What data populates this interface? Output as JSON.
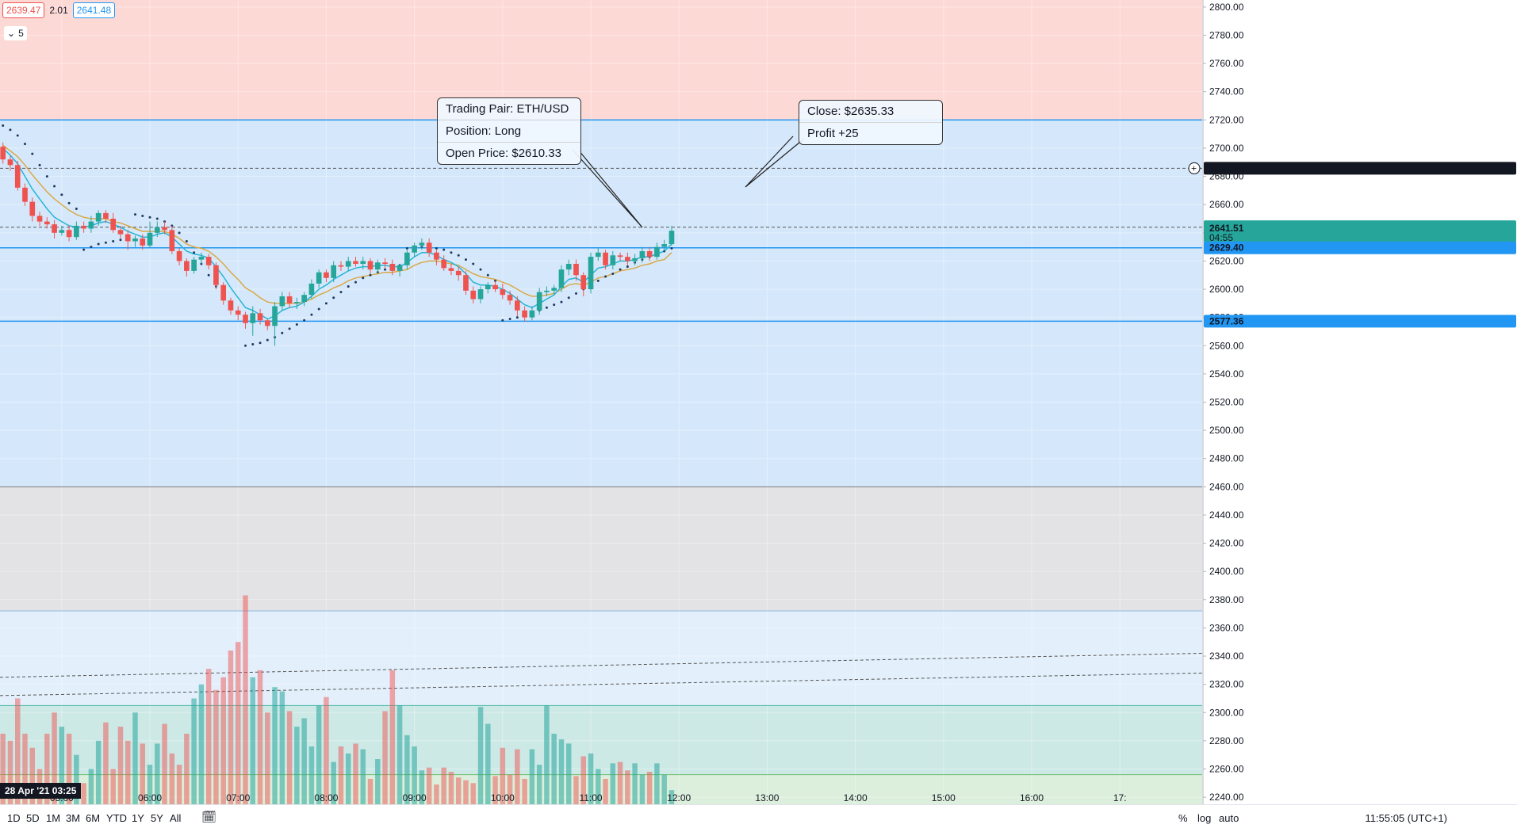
{
  "header": {
    "bid": "2639.47",
    "spread": "2.01",
    "ask": "2641.48",
    "interval": "5"
  },
  "popups": {
    "open": {
      "pair": "Trading Pair: ETH/USD",
      "position": "Position: Long",
      "open_price": "Open Price: $2610.33"
    },
    "close": {
      "close_price": "Close: $2635.33",
      "profit": "Profit +25"
    }
  },
  "price_tags": {
    "crosshair": "2685.72",
    "last_price": "2641.51",
    "countdown": "04:55",
    "upper_line": "2629.40",
    "lower_line": "2577.36"
  },
  "colors": {
    "up": "#26a69a",
    "down": "#ef5350",
    "ema_fast": "#26b5d6",
    "ema_slow": "#d9a948",
    "zone_red": "#fdd9d6",
    "zone_blue": "#d5e8fb",
    "zone_gray": "#e3e3e5",
    "zone_lightblue": "#e3f0fc",
    "zone_teal": "#cde9e6",
    "zone_green": "#dcefdc",
    "line_blue": "#2196f3"
  },
  "date_badge": "28 Apr '21   03:25",
  "toolbar": {
    "timeframes": [
      "1D",
      "5D",
      "1M",
      "3M",
      "6M",
      "YTD",
      "1Y",
      "5Y",
      "All"
    ],
    "clock": "11:55:05 (UTC+1)",
    "percent": "%",
    "log": "log",
    "auto": "auto"
  },
  "chart_data": {
    "type": "candlestick",
    "symbol": "ETH/USD",
    "interval_minutes": 5,
    "ylim": [
      2235,
      2805
    ],
    "y_ticks": [
      2800,
      2780,
      2760,
      2740,
      2720,
      2700,
      2680,
      2660,
      2640,
      2620,
      2600,
      2580,
      2560,
      2540,
      2520,
      2500,
      2480,
      2460,
      2440,
      2420,
      2400,
      2380,
      2360,
      2340,
      2320,
      2300,
      2280,
      2260,
      2240
    ],
    "x_ticks": [
      "05:00",
      "06:00",
      "07:00",
      "08:00",
      "09:00",
      "10:00",
      "11:00",
      "12:00",
      "13:00",
      "14:00",
      "15:00",
      "16:00",
      "17:"
    ],
    "x_tick_minutes": [
      300,
      360,
      420,
      480,
      540,
      600,
      660,
      720,
      780,
      840,
      900,
      960,
      1020
    ],
    "x_range_minutes": [
      258,
      1076
    ],
    "zones": [
      {
        "from": 2720,
        "to": 2805,
        "color": "zone_red"
      },
      {
        "from": 2460,
        "to": 2720,
        "color": "zone_blue"
      },
      {
        "from": 2372,
        "to": 2460,
        "color": "zone_gray"
      },
      {
        "from": 2305,
        "to": 2372,
        "color": "zone_lightblue"
      },
      {
        "from": 2256,
        "to": 2305,
        "color": "zone_teal"
      },
      {
        "from": 2235,
        "to": 2256,
        "color": "zone_green"
      }
    ],
    "hlines": [
      2720,
      2629.4,
      2577.36,
      2460
    ],
    "dashed_lines": [
      {
        "y": 2685.72,
        "x0": 258,
        "x1": 1076
      },
      {
        "y": 2644,
        "x0": 258,
        "x1": 1076
      },
      {
        "start": [
          258,
          2312
        ],
        "end": [
          1076,
          2328
        ]
      },
      {
        "start": [
          258,
          2325
        ],
        "end": [
          1076,
          2342
        ]
      }
    ],
    "times_min": [
      260,
      265,
      270,
      275,
      280,
      285,
      290,
      295,
      300,
      305,
      310,
      315,
      320,
      325,
      330,
      335,
      340,
      345,
      350,
      355,
      360,
      365,
      370,
      375,
      380,
      385,
      390,
      395,
      400,
      405,
      410,
      415,
      420,
      425,
      430,
      435,
      440,
      445,
      450,
      455,
      460,
      465,
      470,
      475,
      480,
      485,
      490,
      495,
      500,
      505,
      510,
      515,
      520,
      525,
      530,
      535,
      540,
      545,
      550,
      555,
      560,
      565,
      570,
      575,
      580,
      585,
      590,
      595,
      600,
      605,
      610,
      615,
      620,
      625,
      630,
      635,
      640,
      645,
      650,
      655,
      660,
      665,
      670,
      675,
      680,
      685,
      690,
      695,
      700,
      705,
      710,
      715
    ],
    "open": [
      2701,
      2692,
      2688,
      2672,
      2662,
      2652,
      2648,
      2646,
      2640,
      2642,
      2637,
      2645,
      2643,
      2648,
      2654,
      2650,
      2642,
      2639,
      2634,
      2636,
      2631,
      2640,
      2644,
      2642,
      2627,
      2620,
      2613,
      2621,
      2623,
      2617,
      2603,
      2592,
      2585,
      2582,
      2576,
      2583,
      2578,
      2574,
      2588,
      2595,
      2590,
      2591,
      2596,
      2604,
      2612,
      2608,
      2617,
      2616,
      2620,
      2618,
      2620,
      2614,
      2619,
      2618,
      2613,
      2617,
      2626,
      2631,
      2633,
      2626,
      2621,
      2615,
      2613,
      2610,
      2599,
      2593,
      2600,
      2603,
      2600,
      2596,
      2592,
      2585,
      2580,
      2585,
      2598,
      2599,
      2601,
      2614,
      2618,
      2610,
      2600,
      2623,
      2626,
      2617,
      2624,
      2623,
      2620,
      2622,
      2627,
      2623,
      2630,
      2632
    ],
    "close": [
      2692,
      2688,
      2672,
      2662,
      2652,
      2648,
      2646,
      2640,
      2642,
      2637,
      2645,
      2643,
      2648,
      2654,
      2650,
      2642,
      2639,
      2634,
      2636,
      2631,
      2640,
      2644,
      2642,
      2627,
      2620,
      2613,
      2621,
      2623,
      2617,
      2603,
      2592,
      2585,
      2582,
      2576,
      2583,
      2578,
      2574,
      2588,
      2595,
      2590,
      2591,
      2596,
      2604,
      2612,
      2608,
      2617,
      2616,
      2620,
      2618,
      2620,
      2614,
      2619,
      2618,
      2613,
      2617,
      2626,
      2631,
      2633,
      2626,
      2621,
      2615,
      2613,
      2610,
      2599,
      2593,
      2600,
      2603,
      2600,
      2596,
      2592,
      2585,
      2580,
      2585,
      2598,
      2599,
      2601,
      2614,
      2618,
      2610,
      2600,
      2623,
      2626,
      2617,
      2624,
      2623,
      2620,
      2622,
      2627,
      2623,
      2630,
      2632,
      2641.5
    ],
    "high": [
      2704,
      2695,
      2691,
      2675,
      2665,
      2655,
      2651,
      2649,
      2645,
      2645,
      2648,
      2648,
      2652,
      2656,
      2656,
      2654,
      2645,
      2642,
      2638,
      2639,
      2648,
      2648,
      2648,
      2645,
      2629,
      2622,
      2623,
      2626,
      2625,
      2619,
      2605,
      2594,
      2588,
      2584,
      2588,
      2586,
      2579,
      2591,
      2598,
      2598,
      2594,
      2598,
      2607,
      2614,
      2614,
      2620,
      2620,
      2623,
      2623,
      2623,
      2622,
      2621,
      2622,
      2621,
      2618,
      2628,
      2633,
      2636,
      2636,
      2628,
      2624,
      2618,
      2616,
      2613,
      2602,
      2602,
      2605,
      2606,
      2604,
      2599,
      2595,
      2588,
      2588,
      2601,
      2602,
      2603,
      2617,
      2621,
      2621,
      2612,
      2626,
      2629,
      2628,
      2627,
      2626,
      2626,
      2625,
      2630,
      2630,
      2633,
      2635,
      2645
    ],
    "low": [
      2689,
      2684,
      2670,
      2659,
      2648,
      2645,
      2643,
      2636,
      2638,
      2634,
      2635,
      2640,
      2640,
      2645,
      2647,
      2640,
      2636,
      2628,
      2630,
      2628,
      2629,
      2637,
      2639,
      2625,
      2617,
      2609,
      2611,
      2618,
      2614,
      2600,
      2589,
      2582,
      2578,
      2572,
      2567,
      2575,
      2571,
      2560,
      2585,
      2587,
      2586,
      2588,
      2593,
      2601,
      2605,
      2605,
      2613,
      2613,
      2616,
      2614,
      2611,
      2611,
      2615,
      2610,
      2609,
      2614,
      2623,
      2628,
      2623,
      2617,
      2613,
      2610,
      2606,
      2596,
      2590,
      2590,
      2597,
      2598,
      2593,
      2589,
      2581,
      2577,
      2578,
      2582,
      2595,
      2596,
      2598,
      2610,
      2606,
      2595,
      2597,
      2620,
      2614,
      2614,
      2620,
      2617,
      2617,
      2619,
      2620,
      2621,
      2627,
      2631
    ],
    "ema_fast": [
      2700,
      2695,
      2689,
      2680,
      2671,
      2664,
      2657,
      2651,
      2648,
      2645,
      2644,
      2644,
      2645,
      2647,
      2648,
      2646,
      2644,
      2641,
      2639,
      2637,
      2637,
      2639,
      2640,
      2637,
      2632,
      2627,
      2625,
      2624,
      2622,
      2616,
      2609,
      2601,
      2594,
      2587,
      2585,
      2582,
      2579,
      2581,
      2585,
      2587,
      2588,
      2591,
      2595,
      2600,
      2603,
      2607,
      2610,
      2613,
      2615,
      2616,
      2616,
      2617,
      2617,
      2616,
      2616,
      2619,
      2623,
      2626,
      2626,
      2624,
      2621,
      2619,
      2616,
      2611,
      2605,
      2603,
      2603,
      2602,
      2600,
      2597,
      2593,
      2589,
      2587,
      2590,
      2593,
      2596,
      2602,
      2607,
      2608,
      2605,
      2610,
      2615,
      2616,
      2618,
      2620,
      2620,
      2621,
      2623,
      2623,
      2625,
      2627,
      2632
    ],
    "ema_slow": [
      2702,
      2698,
      2694,
      2688,
      2681,
      2675,
      2669,
      2664,
      2660,
      2656,
      2653,
      2651,
      2650,
      2650,
      2650,
      2648,
      2647,
      2645,
      2643,
      2641,
      2641,
      2641,
      2641,
      2639,
      2636,
      2632,
      2630,
      2629,
      2627,
      2623,
      2618,
      2612,
      2607,
      2601,
      2598,
      2594,
      2591,
      2590,
      2590,
      2590,
      2590,
      2591,
      2593,
      2596,
      2598,
      2601,
      2603,
      2606,
      2608,
      2609,
      2610,
      2611,
      2612,
      2612,
      2613,
      2614,
      2617,
      2619,
      2620,
      2620,
      2619,
      2618,
      2617,
      2614,
      2611,
      2609,
      2608,
      2607,
      2605,
      2603,
      2600,
      2597,
      2595,
      2595,
      2596,
      2597,
      2600,
      2603,
      2604,
      2603,
      2605,
      2608,
      2609,
      2611,
      2613,
      2614,
      2615,
      2617,
      2618,
      2620,
      2621,
      2626
    ],
    "psar": [
      2716,
      2713,
      2709,
      2703,
      2696,
      2688,
      2680,
      2673,
      2667,
      2661,
      2657,
      2628,
      2630,
      2632,
      2633,
      2634,
      2635,
      2636,
      2653,
      2652,
      2651,
      2650,
      2648,
      2645,
      2640,
      2634,
      2626,
      2618,
      2610,
      2602,
      2594,
      2588,
      2583,
      2560,
      2561,
      2562,
      2564,
      2566,
      2569,
      2572,
      2575,
      2578,
      2582,
      2586,
      2590,
      2594,
      2598,
      2602,
      2605,
      2608,
      2610,
      2612,
      2614,
      2616,
      2617,
      2629,
      2630,
      2630,
      2630,
      2629,
      2628,
      2626,
      2624,
      2621,
      2618,
      2614,
      2610,
      2606,
      2578,
      2579,
      2580,
      2581,
      2583,
      2585,
      2587,
      2589,
      2591,
      2594,
      2597,
      2600,
      2603,
      2606,
      2609,
      2611,
      2614,
      2616,
      2619,
      2621,
      2623,
      2625,
      2627,
      2629
    ],
    "volume": [
      2285,
      2280,
      2310,
      2285,
      2275,
      2260,
      2285,
      2300,
      2290,
      2285,
      2270,
      2250,
      2260,
      2280,
      2293,
      2260,
      2290,
      2280,
      2300,
      2278,
      2263,
      2278,
      2292,
      2271,
      2263,
      2285,
      2310,
      2320,
      2331,
      2316,
      2325,
      2344,
      2350,
      2383,
      2325,
      2330,
      2300,
      2318,
      2315,
      2301,
      2290,
      2296,
      2276,
      2305,
      2311,
      2265,
      2276,
      2271,
      2278,
      2274,
      2253,
      2267,
      2301,
      2330,
      2305,
      2284,
      2276,
      2259,
      2261,
      2249,
      2261,
      2258,
      2254,
      2252,
      2250,
      2304,
      2292,
      2255,
      2275,
      2256,
      2274,
      2253,
      2274,
      2263,
      2305,
      2285,
      2281,
      2278,
      2255,
      2269,
      2271,
      2260,
      2253,
      2264,
      2265,
      2259,
      2264,
      2256,
      2258,
      2264,
      2256,
      2245
    ]
  }
}
